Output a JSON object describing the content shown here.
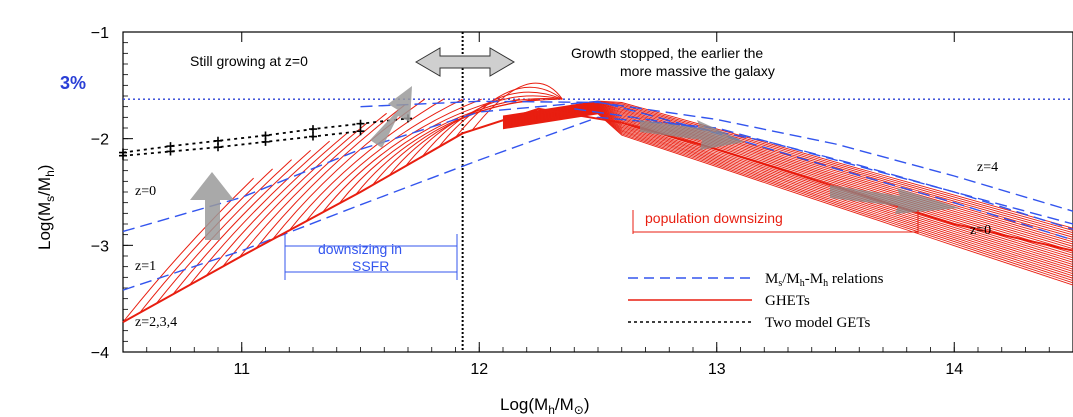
{
  "chart_data": {
    "type": "line",
    "xlabel": "Log(M_h/M_⊙)",
    "ylabel": "Log(M_s/M_h)",
    "xlim": [
      10.5,
      14.5
    ],
    "ylim": [
      -4,
      -1
    ],
    "xticks": [
      11,
      12,
      13,
      14
    ],
    "yticks": [
      -1,
      -2,
      -3,
      -4
    ],
    "tick_labels": {
      "x": [
        "11",
        "12",
        "13",
        "14"
      ],
      "y": [
        "−1",
        "−2",
        "−3",
        "−4"
      ]
    },
    "ref_line": {
      "y": -1.63,
      "label": "3%",
      "color": "#2a3fd6"
    },
    "vertical_line_x": 11.93,
    "annotations": {
      "still_growing": "Still growing at z=0",
      "growth_stopped_1": "Growth stopped, the earlier the",
      "growth_stopped_2": "more massive the galaxy",
      "downsizing_1": "downsizing in",
      "downsizing_2": "SSFR",
      "population_downsizing": "population downsizing"
    },
    "redshift_labels": {
      "z0_left": "z=0",
      "z1_left": "z=1",
      "z234_left": "z=2,3,4",
      "z4_right": "z=4",
      "z0_right": "z=0"
    },
    "legend": [
      {
        "label": "M_s/M_h-M_h relations",
        "style": "dashed",
        "color": "#3355ee"
      },
      {
        "label": "GHETs",
        "style": "solid",
        "color": "#e81e10"
      },
      {
        "label": "Two model GETs",
        "style": "dotted",
        "color": "#000000"
      }
    ],
    "series": [
      {
        "name": "Ms/Mh-Mh relation z=0 (peak)",
        "style": "dashed",
        "x": [
          10.5,
          11.0,
          11.5,
          12.0,
          12.5,
          13.0,
          13.5,
          14.0,
          14.5
        ],
        "y": [
          -2.87,
          -2.55,
          -2.1,
          -1.75,
          -1.65,
          -1.95,
          -2.28,
          -2.6,
          -2.95
        ]
      },
      {
        "name": "Ms/Mh-Mh relation z=0 (upper)",
        "style": "dashed",
        "x": [
          11.5,
          12.0,
          12.5,
          13.0,
          13.5,
          14.0,
          14.5
        ],
        "y": [
          -1.7,
          -1.65,
          -1.66,
          -1.82,
          -2.05,
          -2.35,
          -2.68
        ]
      },
      {
        "name": "Ms/Mh-Mh relation z=1",
        "style": "dashed",
        "x": [
          10.5,
          11.0,
          11.5,
          12.0,
          12.5,
          13.0,
          13.5,
          14.0,
          14.5
        ],
        "y": [
          -3.42,
          -3.05,
          -2.62,
          -2.2,
          -1.8,
          -1.9,
          -2.2,
          -2.5,
          -2.85
        ]
      },
      {
        "name": "Ms/Mh-Mh relation z=4",
        "style": "dashed",
        "x": [
          12.4,
          12.8,
          13.2,
          13.6,
          14.0,
          14.5
        ],
        "y": [
          -1.72,
          -1.85,
          -2.02,
          -2.25,
          -2.5,
          -2.8
        ]
      },
      {
        "name": "GHETs envelope z=2,3,4",
        "style": "solid",
        "x": [
          10.5,
          11.0,
          11.5,
          11.93,
          12.25,
          12.6,
          13.0,
          13.5,
          14.0,
          14.5
        ],
        "y": [
          -3.72,
          -3.1,
          -2.5,
          -1.95,
          -1.72,
          -1.85,
          -2.1,
          -2.45,
          -2.8,
          -3.05
        ]
      },
      {
        "name": "Two model GETs (upper)",
        "style": "dotted",
        "x": [
          10.5,
          10.7,
          10.9,
          11.1,
          11.3,
          11.5,
          11.7
        ],
        "y": [
          -2.13,
          -2.07,
          -2.02,
          -1.97,
          -1.91,
          -1.86,
          -1.81
        ]
      },
      {
        "name": "Two model GETs (lower)",
        "style": "dotted",
        "x": [
          10.5,
          10.7,
          10.9,
          11.1,
          11.3,
          11.5
        ],
        "y": [
          -2.16,
          -2.12,
          -2.08,
          -2.03,
          -1.98,
          -1.93
        ]
      }
    ]
  }
}
